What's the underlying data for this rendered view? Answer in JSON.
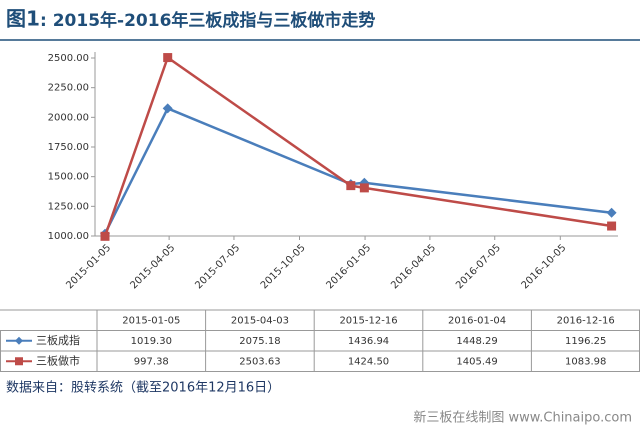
{
  "chart_data": {
    "type": "line",
    "figure_label": "图1",
    "title": ": 2015年-2016年三板成指与三板做市走势",
    "x": [
      "2015-01-05",
      "2015-04-03",
      "2015-12-16",
      "2016-01-04",
      "2016-12-16"
    ],
    "series": [
      {
        "name": "三板成指",
        "color": "#4a7ebb",
        "marker": "diamond",
        "values": [
          1019.3,
          2075.18,
          1436.94,
          1448.29,
          1196.25
        ],
        "value_labels": [
          "1019.30",
          "2075.18",
          "1436.94",
          "1448.29",
          "1196.25"
        ]
      },
      {
        "name": "三板做市",
        "color": "#be4b48",
        "marker": "square",
        "values": [
          997.38,
          2503.63,
          1424.5,
          1405.49,
          1083.98
        ],
        "value_labels": [
          "997.38",
          "2503.63",
          "1424.50",
          "1405.49",
          "1083.98"
        ]
      }
    ],
    "xlim": [
      "2015-01-05",
      "2016-12-25"
    ],
    "xticks": [
      "2015-01-05",
      "2015-04-05",
      "2015-07-05",
      "2015-10-05",
      "2016-01-05",
      "2016-04-05",
      "2016-07-05",
      "2016-10-05"
    ],
    "ylim": [
      1000,
      2500
    ],
    "yticks": [
      {
        "value": 1000,
        "label": "1000.00"
      },
      {
        "value": 1250,
        "label": "1250.00"
      },
      {
        "value": 1500,
        "label": "1500.00"
      },
      {
        "value": 1750,
        "label": "1750.00"
      },
      {
        "value": 2000,
        "label": "2000.00"
      },
      {
        "value": 2250,
        "label": "2250.00"
      },
      {
        "value": 2500,
        "label": "2500.00"
      }
    ],
    "grid": false,
    "source": "数据来自：股转系统（截至2016年12月16日）",
    "credit": "新三板在线制图 www.Chinaipo.com"
  }
}
